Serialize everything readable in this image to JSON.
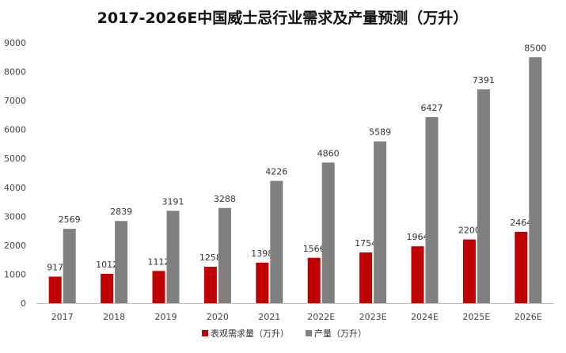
{
  "chart_data": {
    "type": "bar",
    "title": "2017-2026E中国威士忌行业需求及产量预测（万升）",
    "categories": [
      "2017",
      "2018",
      "2019",
      "2020",
      "2021",
      "2022E",
      "2023E",
      "2024E",
      "2025E",
      "2026E"
    ],
    "series": [
      {
        "name": "表观需求量（万升）",
        "color": "#c00000",
        "values": [
          917,
          1012,
          1112,
          1258,
          1398,
          1566,
          1754,
          1964,
          2200,
          2464
        ]
      },
      {
        "name": "产量（万升）",
        "color": "#808080",
        "values": [
          2569,
          2839,
          3191,
          3288,
          4226,
          4860,
          5589,
          6427,
          7391,
          8500
        ]
      }
    ],
    "ylim": [
      0,
      9000
    ],
    "yticks": [
      0,
      1000,
      2000,
      3000,
      4000,
      5000,
      6000,
      7000,
      8000,
      9000
    ],
    "grid": false,
    "legend_position": "bottom"
  }
}
